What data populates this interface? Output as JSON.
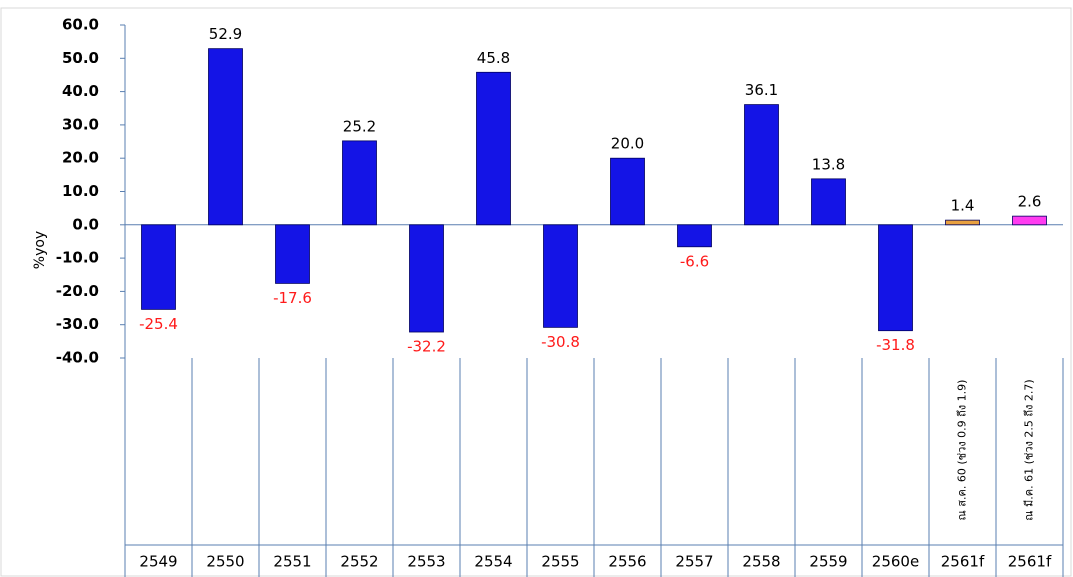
{
  "chart_data": {
    "type": "bar",
    "y_label": "%yoy",
    "categories": [
      "2549",
      "2550",
      "2551",
      "2552",
      "2553",
      "2554",
      "2555",
      "2556",
      "2557",
      "2558",
      "2559",
      "2560e",
      "2561f",
      "2561f"
    ],
    "sublabels": [
      null,
      null,
      null,
      null,
      null,
      null,
      null,
      null,
      null,
      null,
      null,
      null,
      "ณ ส.ค. 60 (ช่วง 0.9 ถึง 1.9)",
      "ณ มี.ค. 61 (ช่วง 2.5 ถึง 2.7)"
    ],
    "values": [
      -25.4,
      52.9,
      -17.6,
      25.2,
      -32.2,
      45.8,
      -30.8,
      20.0,
      -6.6,
      36.1,
      13.8,
      -31.8,
      1.4,
      2.6
    ],
    "value_labels": [
      "-25.4",
      "52.9",
      "-17.6",
      "25.2",
      "-32.2",
      "45.8",
      "-30.8",
      "20.0",
      "-6.6",
      "36.1",
      "13.8",
      "-31.8",
      "1.4",
      "2.6"
    ],
    "colors": [
      "#1414e6",
      "#1414e6",
      "#1414e6",
      "#1414e6",
      "#1414e6",
      "#1414e6",
      "#1414e6",
      "#1414e6",
      "#1414e6",
      "#1414e6",
      "#1414e6",
      "#1414e6",
      "#e8a040",
      "#ff3cf0"
    ],
    "ylim": [
      -40,
      60
    ],
    "yticks": [
      {
        "value": -40,
        "label": "-40.0"
      },
      {
        "value": -30,
        "label": "-30.0"
      },
      {
        "value": -20,
        "label": "-20.0"
      },
      {
        "value": -10,
        "label": "-10.0"
      },
      {
        "value": 0,
        "label": "0.0"
      },
      {
        "value": 10,
        "label": "10.0"
      },
      {
        "value": 20,
        "label": "20.0"
      },
      {
        "value": 30,
        "label": "30.0"
      },
      {
        "value": 40,
        "label": "40.0"
      },
      {
        "value": 50,
        "label": "50.0"
      },
      {
        "value": 60,
        "label": "60.0"
      }
    ]
  }
}
